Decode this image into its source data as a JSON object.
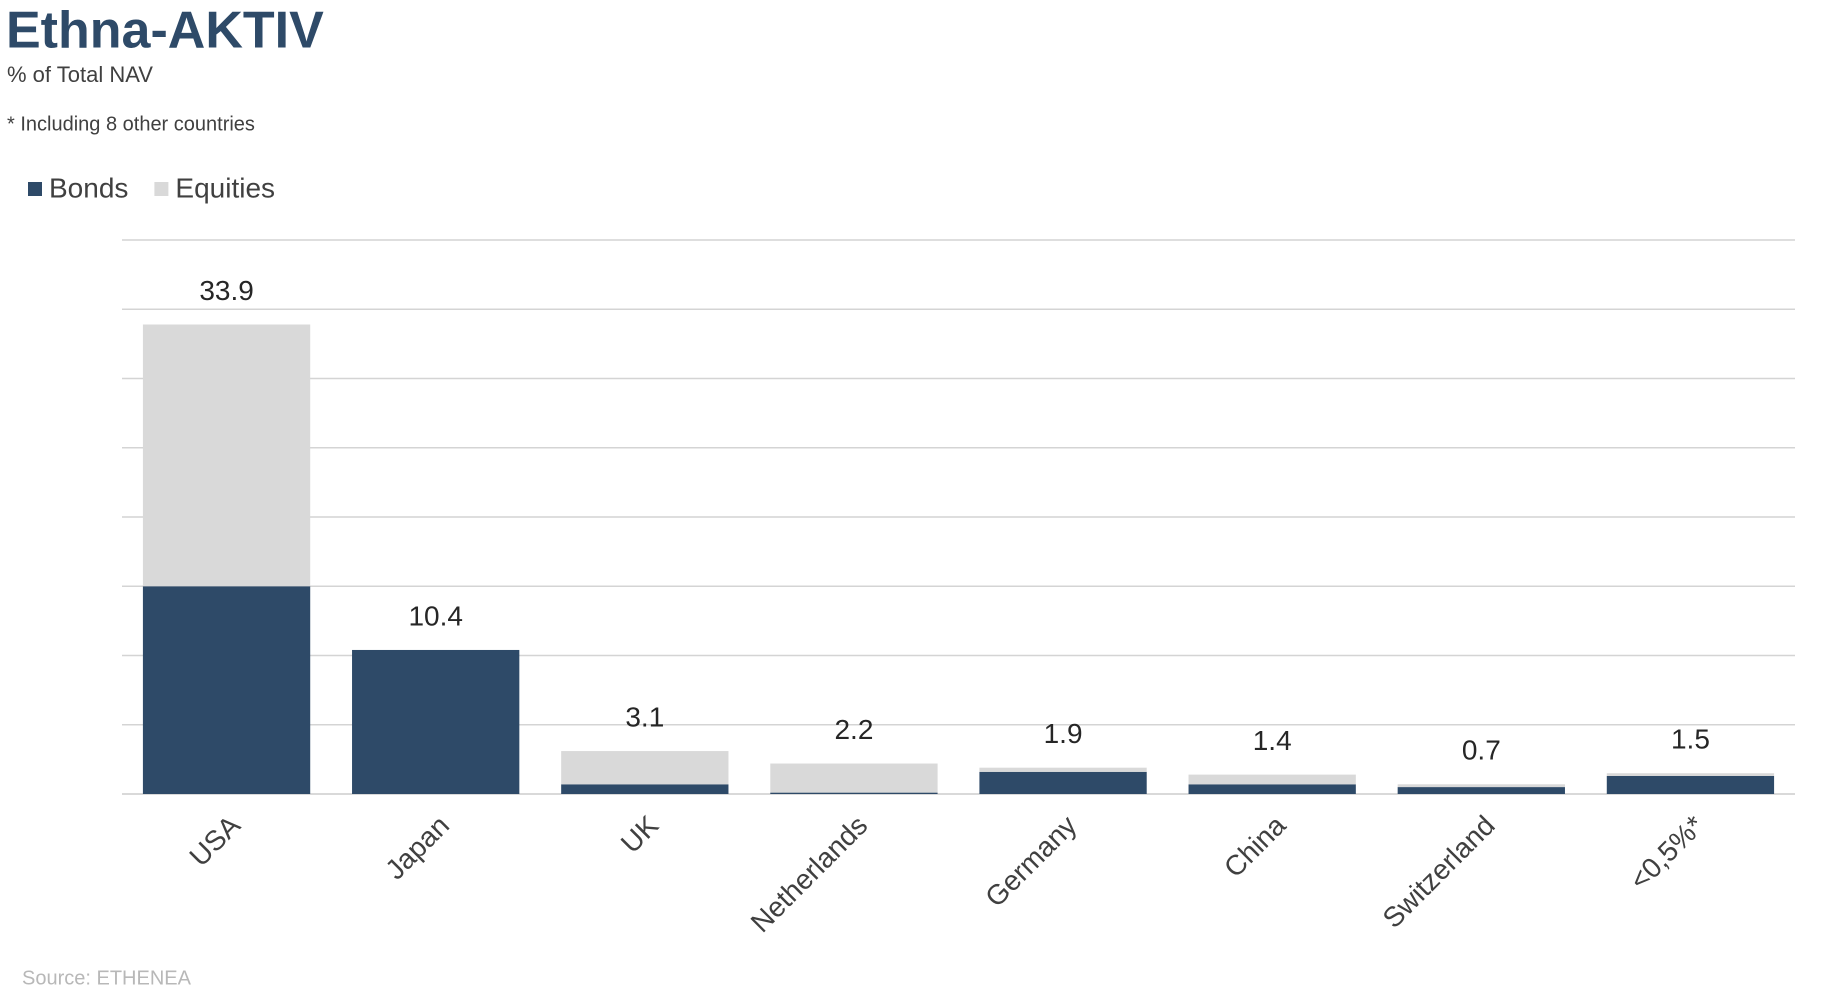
{
  "chart_data": {
    "type": "stacked_bar",
    "title": "Ethna-AKTIV",
    "subtitle": "% of Total NAV",
    "note": "* Including 8 other countries",
    "source": "Source: ETHENEA",
    "categories": [
      "USA",
      "Japan",
      "UK",
      "Netherlands",
      "Germany",
      "China",
      "Switzerland",
      "<0,5%*"
    ],
    "series": [
      {
        "name": "Bonds",
        "color": "#2e4a68",
        "values": [
          15.0,
          10.4,
          0.7,
          0.1,
          1.6,
          0.7,
          0.5,
          1.3
        ]
      },
      {
        "name": "Equities",
        "color": "#d9d9d9",
        "values": [
          18.9,
          0,
          2.4,
          2.1,
          0.3,
          0.7,
          0.2,
          0.2
        ]
      }
    ],
    "totals": [
      33.9,
      10.4,
      3.1,
      2.2,
      1.9,
      1.4,
      0.7,
      1.5
    ],
    "ylim": [
      0,
      40
    ],
    "yticks": [
      0,
      5,
      10,
      15,
      20,
      25,
      30,
      35,
      40
    ],
    "grid": true
  }
}
